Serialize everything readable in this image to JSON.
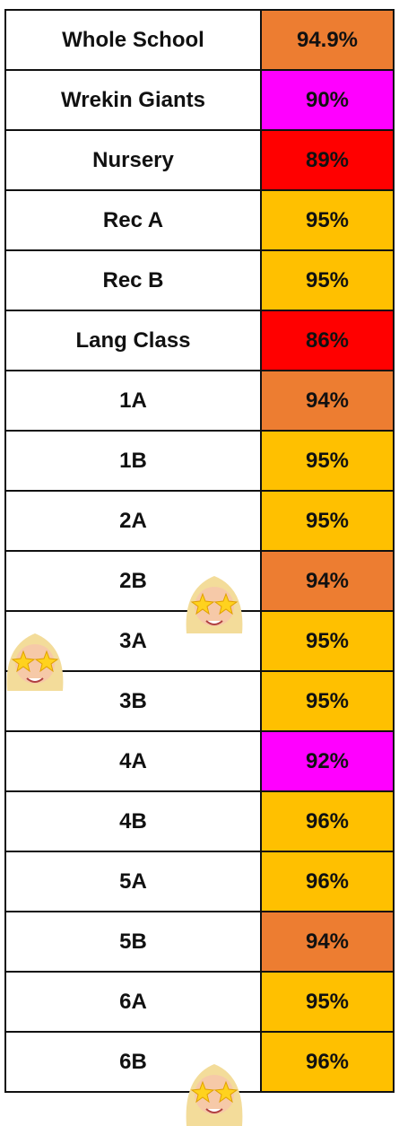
{
  "table": {
    "rows": [
      {
        "class": "Whole School",
        "attendance": "94.9%",
        "color": "#ED7D31"
      },
      {
        "class": "Wrekin Giants",
        "attendance": "90%",
        "color": "#FF00FF"
      },
      {
        "class": "Nursery",
        "attendance": "89%",
        "color": "#FF0000"
      },
      {
        "class": "Rec A",
        "attendance": "95%",
        "color": "#FFC000"
      },
      {
        "class": "Rec B",
        "attendance": "95%",
        "color": "#FFC000"
      },
      {
        "class": "Lang Class",
        "attendance": "86%",
        "color": "#FF0000"
      },
      {
        "class": "1A",
        "attendance": "94%",
        "color": "#ED7D31"
      },
      {
        "class": "1B",
        "attendance": "95%",
        "color": "#FFC000"
      },
      {
        "class": "2A",
        "attendance": "95%",
        "color": "#FFC000"
      },
      {
        "class": "2B",
        "attendance": "94%",
        "color": "#ED7D31"
      },
      {
        "class": "3A",
        "attendance": "95%",
        "color": "#FFC000"
      },
      {
        "class": "3B",
        "attendance": "95%",
        "color": "#FFC000"
      },
      {
        "class": "4A",
        "attendance": "92%",
        "color": "#FF00FF"
      },
      {
        "class": "4B",
        "attendance": "96%",
        "color": "#FFC000"
      },
      {
        "class": "5A",
        "attendance": "96%",
        "color": "#FFC000"
      },
      {
        "class": "5B",
        "attendance": "94%",
        "color": "#ED7D31"
      },
      {
        "class": "6A",
        "attendance": "95%",
        "color": "#FFC000"
      },
      {
        "class": "6B",
        "attendance": "96%",
        "color": "#FFC000"
      }
    ]
  }
}
